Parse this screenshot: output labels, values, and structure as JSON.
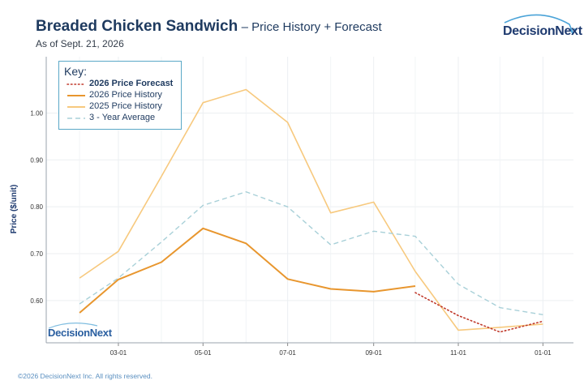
{
  "header": {
    "title": "Breaded Chicken Sandwich",
    "subtitle": "– Price History + Forecast",
    "as_of": "As of Sept. 21, 2026"
  },
  "logo": {
    "text": "DecisionNext",
    "color": "#1e3a6f",
    "arc_color": "#4aa3d8"
  },
  "watermark": {
    "text": "DecisionNext"
  },
  "footer": {
    "text": "©2026 DecisionNext Inc. All rights reserved."
  },
  "legend": {
    "title": "Key:",
    "items": [
      {
        "label": "2026 Price Forecast",
        "style": "dotted",
        "color": "#c0392b"
      },
      {
        "label": "2026 Price History",
        "style": "solid",
        "color": "#e8962e"
      },
      {
        "label": "2025 Price History",
        "style": "solid",
        "color": "#f7c97e"
      },
      {
        "label": "3 - Year Average",
        "style": "dashed",
        "color": "#a8d0d8"
      }
    ]
  },
  "chart_data": {
    "type": "line",
    "ylabel": "Price ($/unit)",
    "xlabel": "",
    "x_ticks": [
      "03-01",
      "05-01",
      "07-01",
      "09-01",
      "11-01",
      "01-01"
    ],
    "y_ticks": [
      "0.60",
      "0.70",
      "0.80",
      "0.90",
      "1.00"
    ],
    "ylim": [
      0.51,
      1.12
    ],
    "grid": true,
    "series": [
      {
        "name": "2025 Price History",
        "color": "#f7c97e",
        "style": "solid",
        "points": [
          [
            "2026-02-01",
            0.648
          ],
          [
            "2026-03-01",
            0.705
          ],
          [
            "2026-04-01",
            0.865
          ],
          [
            "2026-05-01",
            1.022
          ],
          [
            "2026-06-01",
            1.05
          ],
          [
            "2026-07-01",
            0.98
          ],
          [
            "2026-08-01",
            0.787
          ],
          [
            "2026-09-01",
            0.81
          ],
          [
            "2026-10-01",
            0.662
          ],
          [
            "2026-11-01",
            0.537
          ],
          [
            "2026-12-01",
            0.543
          ],
          [
            "2027-01-01",
            0.55
          ]
        ]
      },
      {
        "name": "3 - Year Average",
        "color": "#a8d0d8",
        "style": "dashed",
        "points": [
          [
            "2026-02-01",
            0.593
          ],
          [
            "2026-03-01",
            0.648
          ],
          [
            "2026-04-01",
            0.725
          ],
          [
            "2026-05-01",
            0.803
          ],
          [
            "2026-06-01",
            0.832
          ],
          [
            "2026-07-01",
            0.8
          ],
          [
            "2026-08-01",
            0.719
          ],
          [
            "2026-09-01",
            0.748
          ],
          [
            "2026-10-01",
            0.737
          ],
          [
            "2026-11-01",
            0.635
          ],
          [
            "2026-12-01",
            0.585
          ],
          [
            "2027-01-01",
            0.57
          ]
        ]
      },
      {
        "name": "2026 Price History",
        "color": "#e8962e",
        "style": "solid",
        "points": [
          [
            "2026-02-01",
            0.574
          ],
          [
            "2026-03-01",
            0.645
          ],
          [
            "2026-04-01",
            0.682
          ],
          [
            "2026-05-01",
            0.754
          ],
          [
            "2026-06-01",
            0.722
          ],
          [
            "2026-07-01",
            0.646
          ],
          [
            "2026-08-01",
            0.625
          ],
          [
            "2026-09-01",
            0.619
          ],
          [
            "2026-10-01",
            0.631
          ]
        ]
      },
      {
        "name": "2026 Price Forecast",
        "color": "#c0392b",
        "style": "dotted",
        "points": [
          [
            "2026-10-01",
            0.617
          ],
          [
            "2026-11-01",
            0.568
          ],
          [
            "2026-12-01",
            0.533
          ],
          [
            "2027-01-01",
            0.556
          ]
        ]
      }
    ]
  }
}
